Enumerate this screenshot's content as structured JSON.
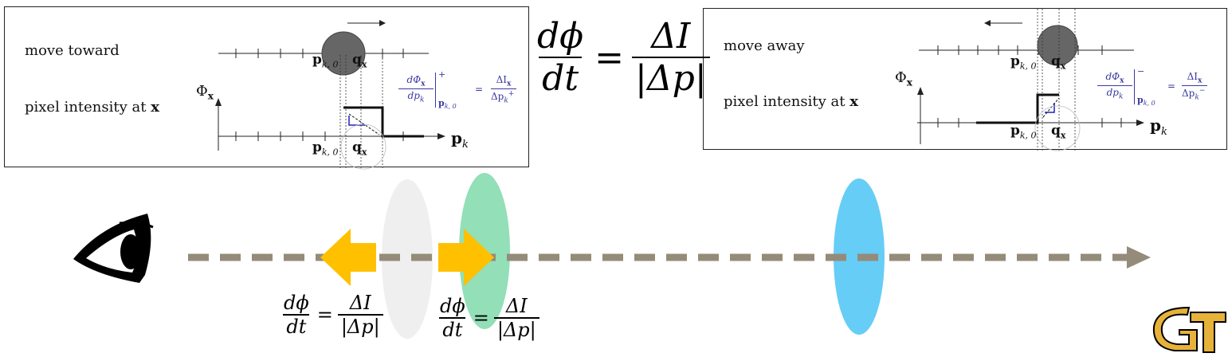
{
  "left_panel": {
    "caption_top": "move toward",
    "caption_bottom_prefix": "pixel intensity at ",
    "caption_bottom_var": "x",
    "phi_label": "Φ",
    "phi_sub": "x",
    "pk0_label": "p",
    "pk0_sub": "k, 0",
    "qx_label": "q",
    "qx_sub": "x",
    "axis_label": "p",
    "axis_sub": "k",
    "deriv_num": "dΦ",
    "deriv_num_sub": "x",
    "deriv_den": "dp",
    "deriv_den_sub": "k",
    "deriv_eval_sub": "p",
    "deriv_eval_subsub": "k, 0",
    "deriv_sign": "+",
    "eq": "=",
    "ratio_num": "ΔI",
    "ratio_num_sub": "x",
    "ratio_den": "Δp",
    "ratio_den_sub": "k",
    "ratio_sign": "+"
  },
  "right_panel": {
    "caption_top": "move away",
    "caption_bottom_prefix": "pixel intensity at ",
    "caption_bottom_var": "x",
    "phi_label": "Φ",
    "phi_sub": "x",
    "pk0_label": "p",
    "pk0_sub": "k, 0",
    "qx_label": "q",
    "qx_sub": "x",
    "axis_label": "p",
    "axis_sub": "k",
    "deriv_num": "dΦ",
    "deriv_num_sub": "x",
    "deriv_den": "dp",
    "deriv_den_sub": "k",
    "deriv_eval_sub": "p",
    "deriv_eval_subsub": "k, 0",
    "deriv_sign": "−",
    "eq": "=",
    "ratio_num": "ΔI",
    "ratio_num_sub": "x",
    "ratio_den": "Δp",
    "ratio_den_sub": "k",
    "ratio_sign": "−"
  },
  "main_equation": {
    "num": "dϕ",
    "den": "dt",
    "eq": "=",
    "rnum": "ΔI",
    "rden": "|Δp|"
  },
  "eq_left": {
    "num": "dϕ",
    "den": "dt",
    "eq": "=",
    "rnum": "ΔI",
    "rden": "|Δp|"
  },
  "eq_right": {
    "num": "dϕ",
    "den": "dt",
    "eq": "=",
    "rnum": "ΔI",
    "rden": "|Δp|"
  },
  "colors": {
    "dash_line": "#958b7a",
    "arrow_yellow": "#ffc000",
    "lens_gray": "#efefef",
    "lens_green": "#93dfb7",
    "lens_blue": "#66cdf6",
    "gt_gold": "#e6b23a",
    "blue_text": "#3a3aa0"
  },
  "icons": [
    "eye-icon",
    "gt-logo-icon"
  ]
}
